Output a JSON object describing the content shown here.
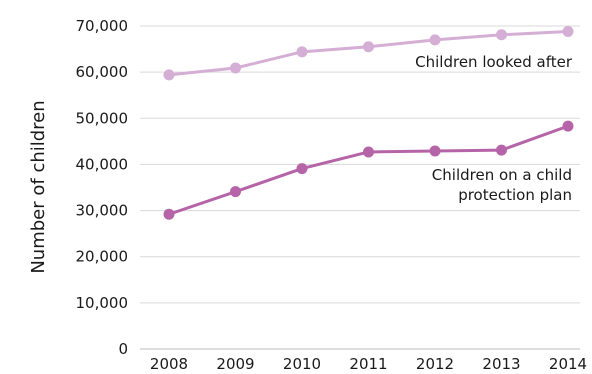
{
  "chart_data": {
    "type": "line",
    "x": [
      "2008",
      "2009",
      "2010",
      "2011",
      "2012",
      "2013",
      "2014"
    ],
    "ylabel": "Number of children",
    "xlabel": "",
    "title": "",
    "ylim": [
      0,
      70000
    ],
    "yticks": [
      0,
      10000,
      20000,
      30000,
      40000,
      50000,
      60000,
      70000
    ],
    "ytick_labels": [
      "0",
      "10,000",
      "20,000",
      "30,000",
      "40,000",
      "50,000",
      "60,000",
      "70,000"
    ],
    "grid": true,
    "series": [
      {
        "name": "Children looked after",
        "label_lines": [
          "Children looked after"
        ],
        "color": "#d4aed4",
        "values": [
          59400,
          60900,
          64400,
          65500,
          67000,
          68100,
          68800
        ]
      },
      {
        "name": "Children on a child protection plan",
        "label_lines": [
          "Children on a child",
          "protection plan"
        ],
        "color": "#b565a7",
        "values": [
          29200,
          34100,
          39100,
          42700,
          42900,
          43100,
          48300
        ]
      }
    ]
  }
}
